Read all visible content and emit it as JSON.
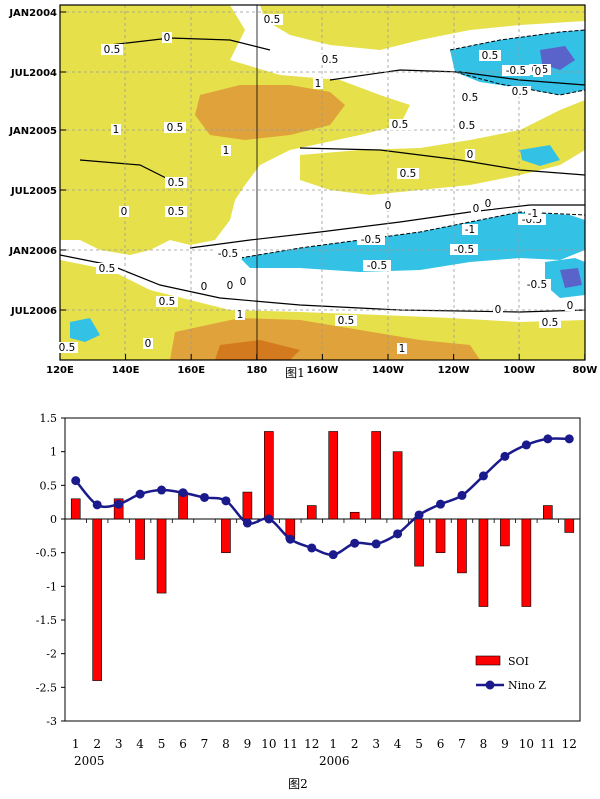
{
  "figure1": {
    "caption": "图1",
    "y_labels": [
      "JAN2004",
      "JUL2004",
      "JAN2005",
      "JUL2005",
      "JAN2006",
      "JUL2006"
    ],
    "x_labels": [
      "120E",
      "140E",
      "160E",
      "180",
      "160W",
      "140W",
      "120W",
      "100W",
      "80W"
    ],
    "contour_labels": [
      {
        "text": "0.5"
      },
      {
        "text": "0.5"
      },
      {
        "text": "0"
      },
      {
        "text": "0.5"
      },
      {
        "text": "1"
      },
      {
        "text": "0.5"
      },
      {
        "text": "0.5"
      },
      {
        "text": "1"
      },
      {
        "text": "0"
      },
      {
        "text": "0.5"
      },
      {
        "text": "0.5"
      },
      {
        "text": "0"
      },
      {
        "text": "0"
      },
      {
        "text": "0.5"
      },
      {
        "text": "-0.5"
      },
      {
        "text": "0"
      },
      {
        "text": "-0.5"
      },
      {
        "text": "0"
      },
      {
        "text": "0.5"
      },
      {
        "text": "0"
      },
      {
        "text": "0.5"
      },
      {
        "text": "0"
      },
      {
        "text": "0.5"
      },
      {
        "text": "-1"
      },
      {
        "text": "0.5"
      },
      {
        "text": "0"
      },
      {
        "text": "-0.5"
      },
      {
        "text": "-1"
      },
      {
        "text": "-0.5"
      },
      {
        "text": "-0.5"
      },
      {
        "text": "0.5"
      },
      {
        "text": "0"
      },
      {
        "text": "-0.5"
      },
      {
        "text": "0"
      },
      {
        "text": "0.5"
      },
      {
        "text": "-0.5"
      },
      {
        "text": "0.5"
      },
      {
        "text": "0"
      },
      {
        "text": "1"
      },
      {
        "text": "0.5"
      },
      {
        "text": "0.5"
      },
      {
        "text": "1"
      },
      {
        "text": "0"
      },
      {
        "text": "0"
      },
      {
        "text": "1"
      },
      {
        "text": "0.5"
      }
    ],
    "colors": {
      "yellow": "#e6e04a",
      "orange": "#e0a23a",
      "darkorange": "#d47a1e",
      "blue": "#33c1e6",
      "darkblue": "#5a63c9"
    }
  },
  "chart_data": {
    "type": "bar",
    "categories": [
      "1",
      "2",
      "3",
      "4",
      "5",
      "6",
      "7",
      "8",
      "9",
      "10",
      "11",
      "12",
      "1",
      "2",
      "3",
      "4",
      "5",
      "6",
      "7",
      "8",
      "9",
      "10",
      "11",
      "12"
    ],
    "year_labels": [
      "2005",
      "2006"
    ],
    "series": [
      {
        "name": "SOI",
        "kind": "bar",
        "color": "#ff0000",
        "values": [
          0.3,
          -2.4,
          0.3,
          -0.6,
          -1.1,
          0.4,
          0,
          -0.5,
          0.4,
          1.3,
          -0.3,
          0.2,
          1.3,
          0.1,
          1.3,
          1.0,
          -0.7,
          -0.5,
          -0.8,
          -1.3,
          -0.4,
          -1.3,
          0.2,
          -0.2
        ]
      },
      {
        "name": "Nino Z",
        "kind": "line",
        "color": "#1a1a8c",
        "values": [
          0.57,
          0.21,
          0.22,
          0.37,
          0.43,
          0.39,
          0.32,
          0.27,
          -0.06,
          0.0,
          -0.3,
          -0.43,
          -0.53,
          -0.36,
          -0.37,
          -0.22,
          0.06,
          0.22,
          0.35,
          0.64,
          0.93,
          1.1,
          1.19,
          1.19
        ]
      }
    ],
    "y_ticks": [
      "1.5",
      "1",
      "0.5",
      "0",
      "-0.5",
      "-1",
      "-1.5",
      "-2",
      "-2.5",
      "-3"
    ],
    "ylim": [
      -3,
      1.5
    ],
    "legend": "bottom-right",
    "caption": "图2"
  }
}
